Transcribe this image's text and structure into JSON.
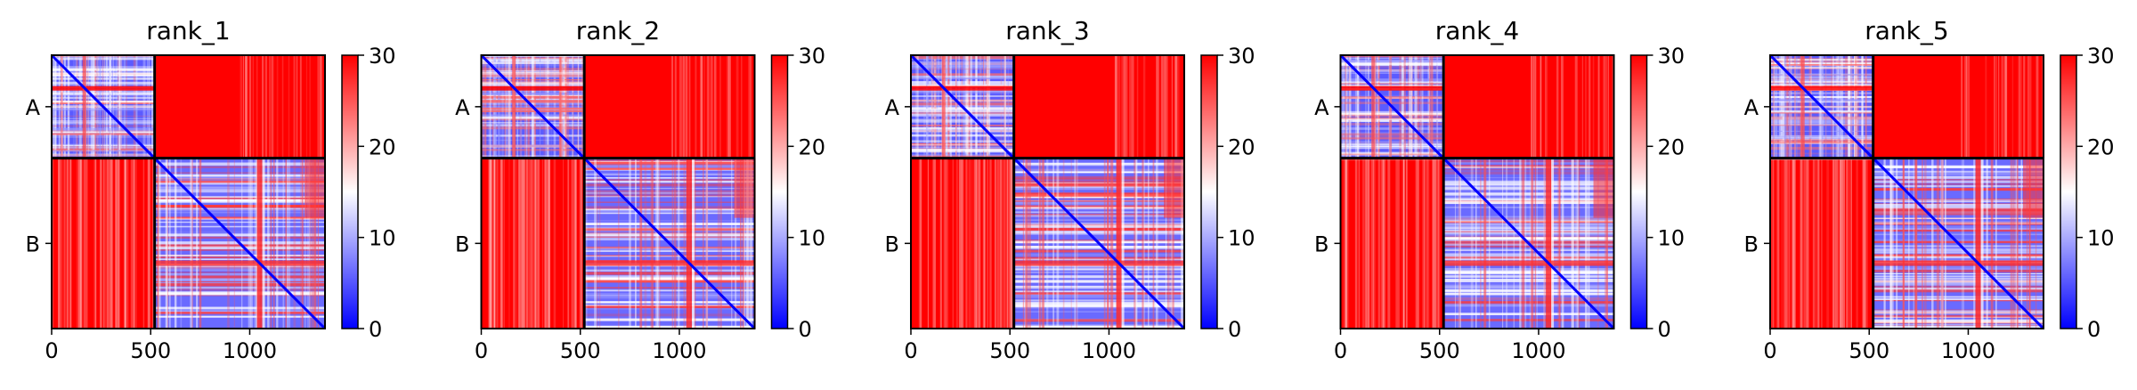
{
  "chart_data": [
    {
      "type": "heatmap",
      "title": "rank_1",
      "xticks": [
        0,
        500,
        1000
      ],
      "chain_labels": [
        "A",
        "B"
      ],
      "chain_boundary": 520,
      "xlim": [
        0,
        1380
      ],
      "colorbar": {
        "min": 0,
        "max": 30,
        "ticks": [
          0,
          10,
          20,
          30
        ]
      },
      "cmap": [
        "#0000ff",
        "#ffffff",
        "#ff0000"
      ]
    },
    {
      "type": "heatmap",
      "title": "rank_2",
      "xticks": [
        0,
        500,
        1000
      ],
      "chain_labels": [
        "A",
        "B"
      ],
      "chain_boundary": 520,
      "xlim": [
        0,
        1380
      ],
      "colorbar": {
        "min": 0,
        "max": 30,
        "ticks": [
          0,
          10,
          20,
          30
        ]
      },
      "cmap": [
        "#0000ff",
        "#ffffff",
        "#ff0000"
      ]
    },
    {
      "type": "heatmap",
      "title": "rank_3",
      "xticks": [
        0,
        500,
        1000
      ],
      "chain_labels": [
        "A",
        "B"
      ],
      "chain_boundary": 520,
      "xlim": [
        0,
        1380
      ],
      "colorbar": {
        "min": 0,
        "max": 30,
        "ticks": [
          0,
          10,
          20,
          30
        ]
      },
      "cmap": [
        "#0000ff",
        "#ffffff",
        "#ff0000"
      ]
    },
    {
      "type": "heatmap",
      "title": "rank_4",
      "xticks": [
        0,
        500,
        1000
      ],
      "chain_labels": [
        "A",
        "B"
      ],
      "chain_boundary": 520,
      "xlim": [
        0,
        1380
      ],
      "colorbar": {
        "min": 0,
        "max": 30,
        "ticks": [
          0,
          10,
          20,
          30
        ]
      },
      "cmap": [
        "#0000ff",
        "#ffffff",
        "#ff0000"
      ]
    },
    {
      "type": "heatmap",
      "title": "rank_5",
      "xticks": [
        0,
        500,
        1000
      ],
      "chain_labels": [
        "A",
        "B"
      ],
      "chain_boundary": 520,
      "xlim": [
        0,
        1380
      ],
      "colorbar": {
        "min": 0,
        "max": 30,
        "ticks": [
          0,
          10,
          20,
          30
        ]
      },
      "cmap": [
        "#0000ff",
        "#ffffff",
        "#ff0000"
      ]
    }
  ]
}
